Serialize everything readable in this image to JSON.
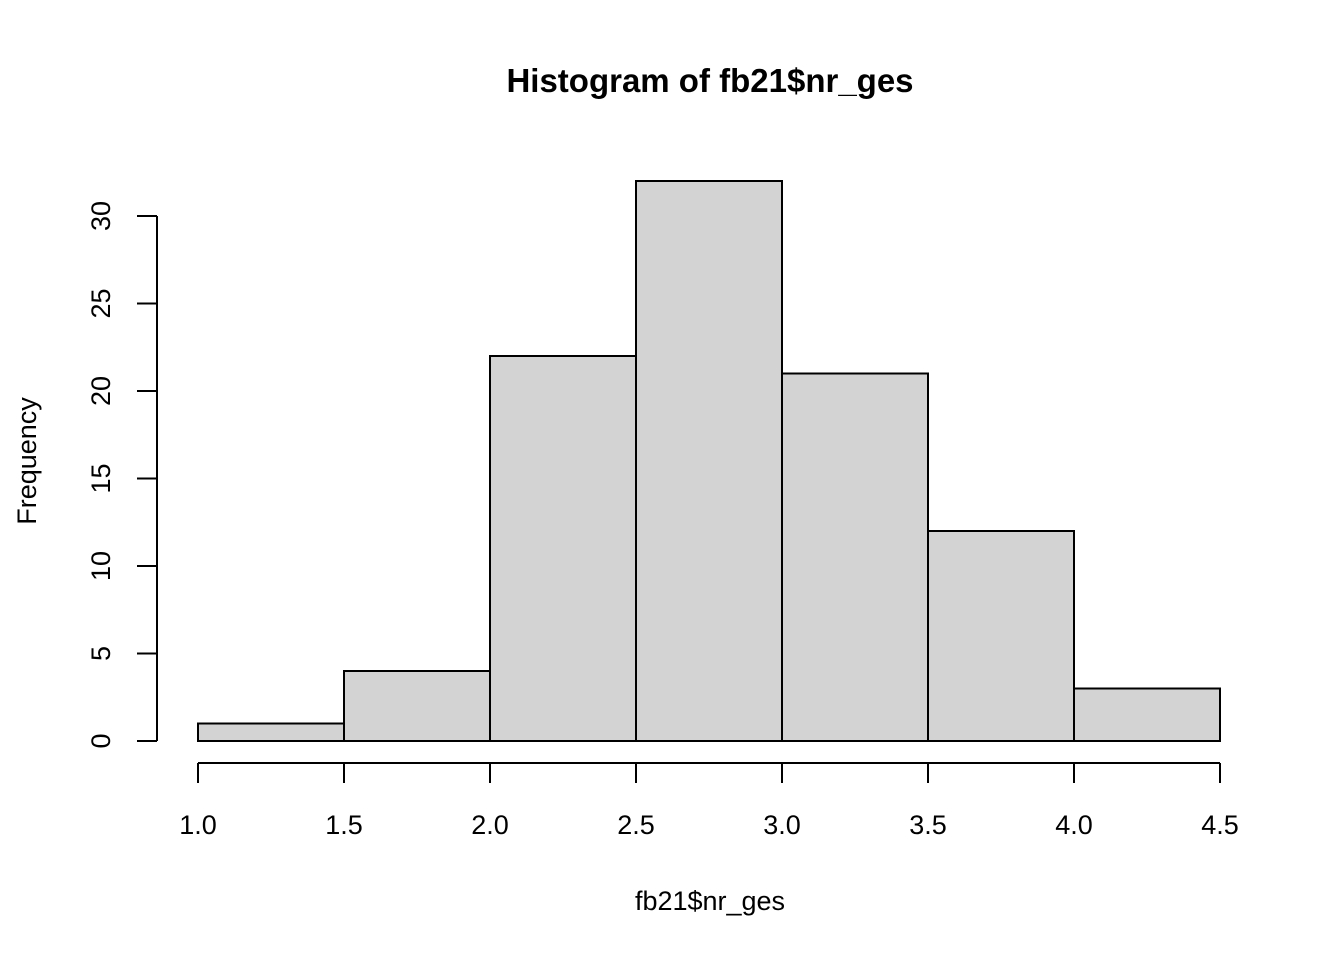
{
  "chart_data": {
    "type": "bar",
    "title": "Histogram of fb21$nr_ges",
    "xlabel": "fb21$nr_ges",
    "ylabel": "Frequency",
    "bins": [
      {
        "start": 1.0,
        "end": 1.5,
        "count": 1
      },
      {
        "start": 1.5,
        "end": 2.0,
        "count": 4
      },
      {
        "start": 2.0,
        "end": 2.5,
        "count": 22
      },
      {
        "start": 2.5,
        "end": 3.0,
        "count": 32
      },
      {
        "start": 3.0,
        "end": 3.5,
        "count": 21
      },
      {
        "start": 3.5,
        "end": 4.0,
        "count": 12
      },
      {
        "start": 4.0,
        "end": 4.5,
        "count": 3
      }
    ],
    "xlim": [
      1.0,
      4.5
    ],
    "ylim": [
      0,
      32
    ],
    "x_ticks": [
      "1.0",
      "1.5",
      "2.0",
      "2.5",
      "3.0",
      "3.5",
      "4.0",
      "4.5"
    ],
    "y_ticks": [
      "0",
      "5",
      "10",
      "15",
      "20",
      "25",
      "30"
    ],
    "bar_color": "#d3d3d3",
    "grid": false
  }
}
